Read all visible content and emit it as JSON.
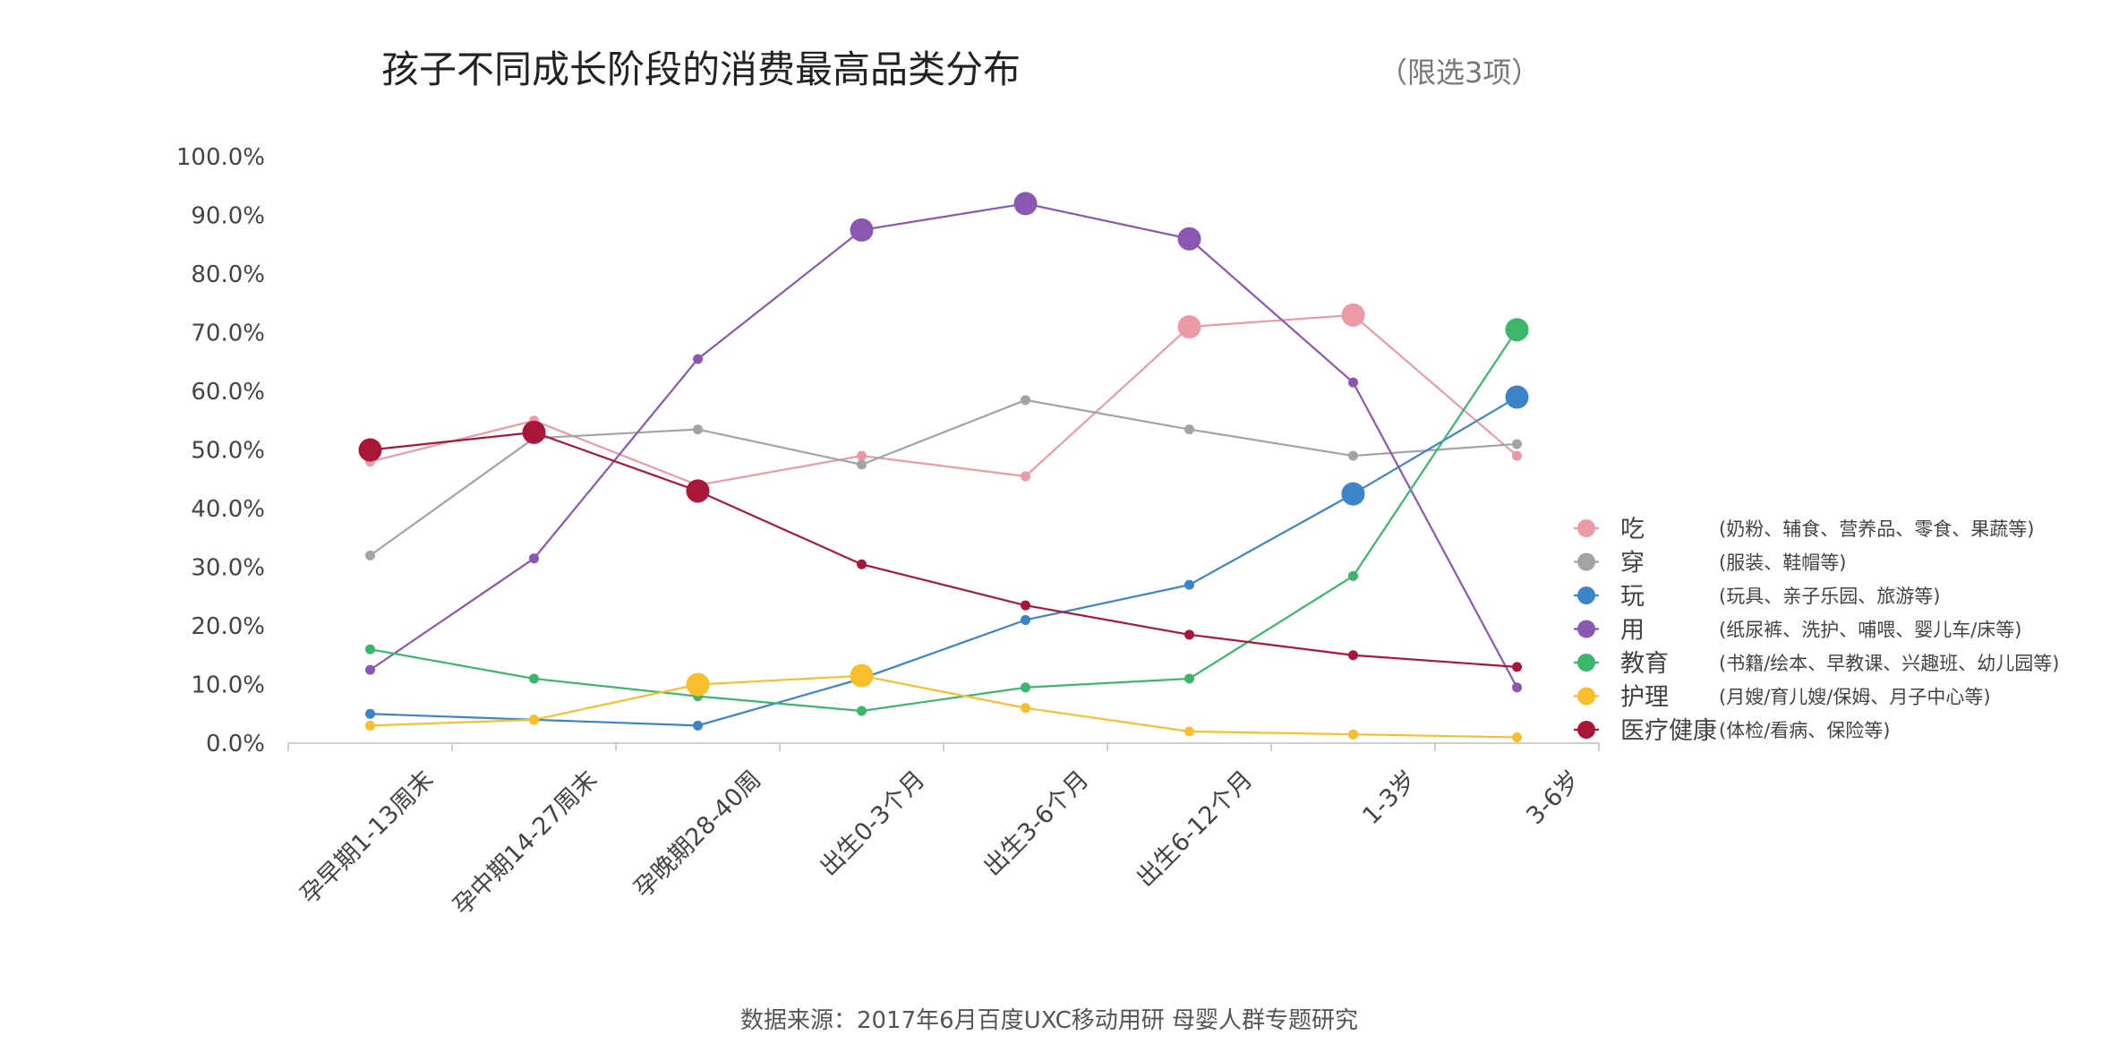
{
  "chart_data": {
    "type": "line",
    "title": "孩子不同成长阶段的消费最高品类分布",
    "subtitle": "（限选3项）",
    "source": "数据来源：2017年6月百度UXC移动用研 母婴人群专题研究",
    "categories": [
      "孕早期1-13周末",
      "孕中期14-27周末",
      "孕晚期28-40周",
      "出生0-3个月",
      "出生3-6个月",
      "出生6-12个月",
      "1-3岁",
      "3-6岁"
    ],
    "y_ticks": [
      "0.0%",
      "10.0%",
      "20.0%",
      "30.0%",
      "40.0%",
      "50.0%",
      "60.0%",
      "70.0%",
      "80.0%",
      "90.0%",
      "100.0%"
    ],
    "ylim": [
      0,
      100
    ],
    "grid": false,
    "legend_position": "right",
    "series": [
      {
        "name": "吃",
        "desc": "(奶粉、辅食、营养品、零食、果蔬等)",
        "color": "#ec9aa6",
        "values": [
          48.0,
          55.0,
          44.0,
          49.0,
          45.5,
          71.0,
          73.0,
          49.0
        ],
        "highlight": [
          5,
          6
        ]
      },
      {
        "name": "穿",
        "desc": "(服装、鞋帽等)",
        "color": "#a3a3a3",
        "values": [
          32.0,
          52.0,
          53.5,
          47.5,
          58.5,
          53.5,
          49.0,
          51.0
        ],
        "highlight": []
      },
      {
        "name": "玩",
        "desc": "(玩具、亲子乐园、旅游等)",
        "color": "#3b84c9",
        "values": [
          5.0,
          4.0,
          3.0,
          11.0,
          21.0,
          27.0,
          42.5,
          59.0
        ],
        "highlight": [
          6,
          7
        ]
      },
      {
        "name": "用",
        "desc": "(纸尿裤、洗护、哺喂、婴儿车/床等)",
        "color": "#8b57b3",
        "values": [
          12.5,
          31.5,
          65.5,
          87.5,
          92.0,
          86.0,
          61.5,
          9.5
        ],
        "highlight": [
          3,
          4,
          5
        ]
      },
      {
        "name": "教育",
        "desc": "(书籍/绘本、早教课、兴趣班、幼儿园等)",
        "color": "#3bb66b",
        "values": [
          16.0,
          11.0,
          8.0,
          5.5,
          9.5,
          11.0,
          28.5,
          70.5
        ],
        "highlight": [
          7
        ]
      },
      {
        "name": "护理",
        "desc": "(月嫂/育儿嫂/保姆、月子中心等)",
        "color": "#f8be2e",
        "values": [
          3.0,
          4.0,
          10.0,
          11.5,
          6.0,
          2.0,
          1.5,
          1.0
        ],
        "highlight": [
          2,
          3
        ]
      },
      {
        "name": "医疗健康",
        "desc": "(体检/看病、保险等)",
        "color": "#a8173a",
        "values": [
          50.0,
          53.0,
          43.0,
          30.5,
          23.5,
          18.5,
          15.0,
          13.0
        ],
        "highlight": [
          0,
          1,
          2
        ]
      }
    ]
  }
}
